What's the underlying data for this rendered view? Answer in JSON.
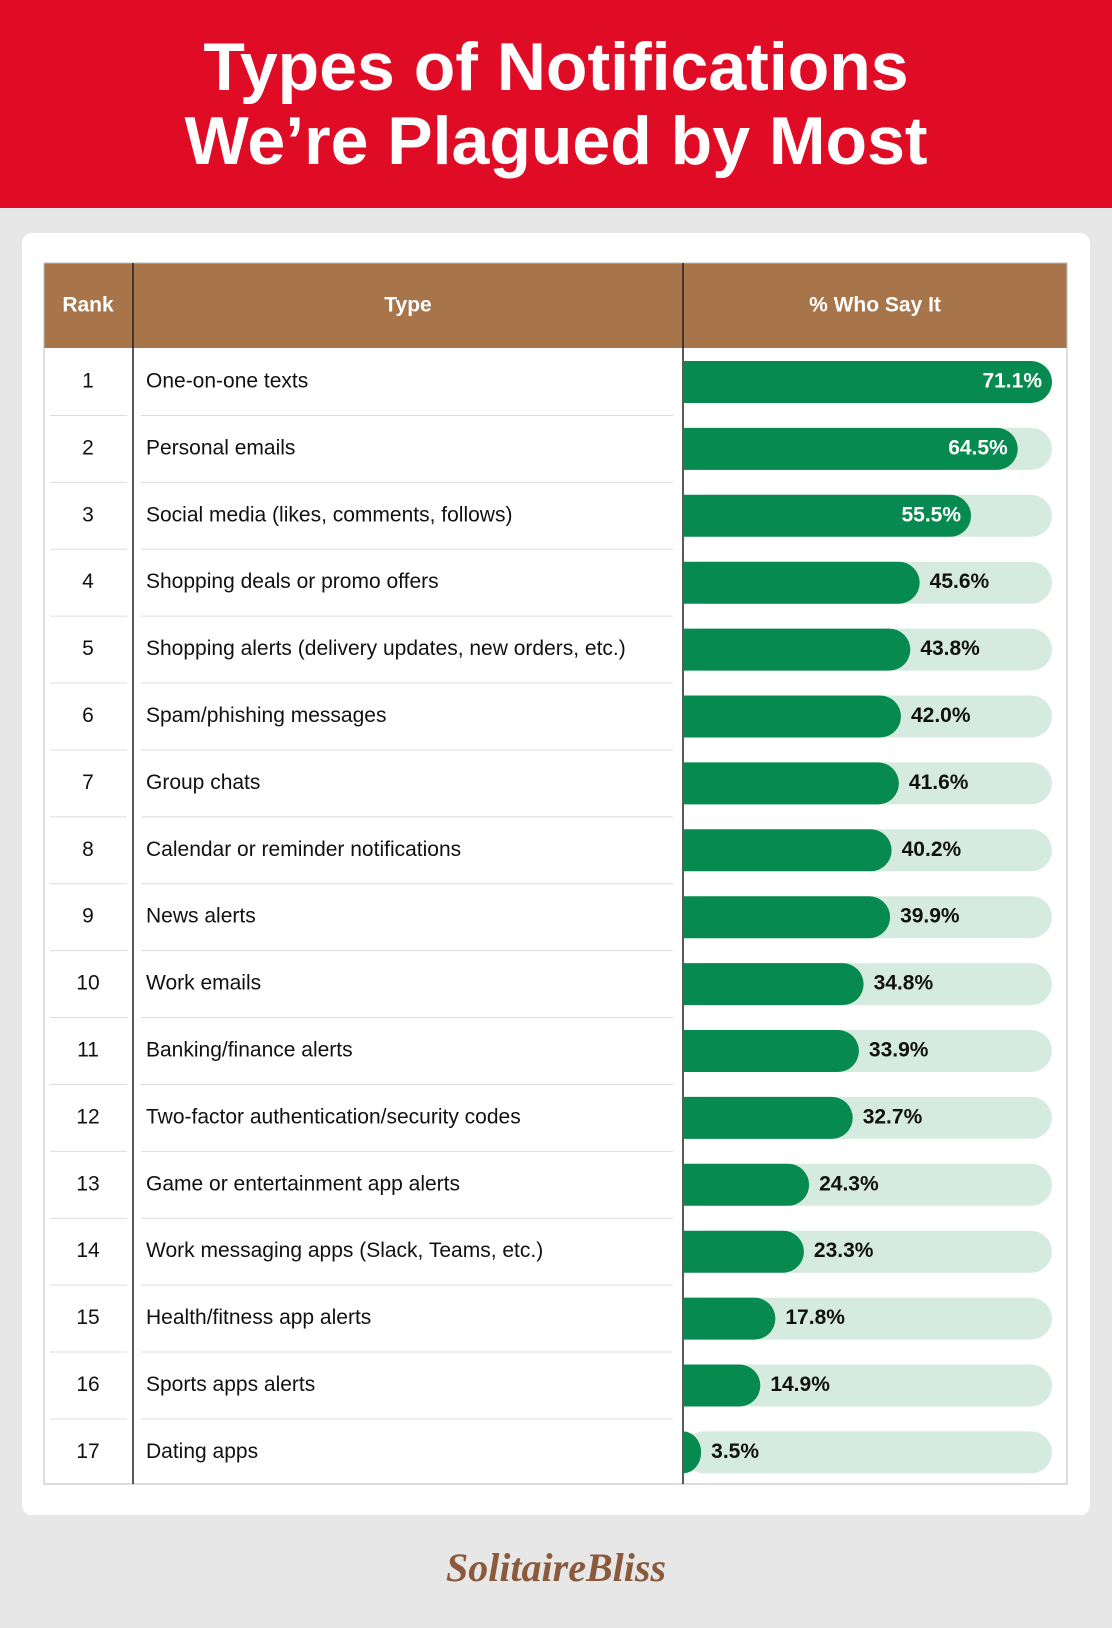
{
  "chart_data": {
    "type": "bar",
    "title": [
      "Types of Notifications",
      "We’re Plagued by Most"
    ],
    "columns": [
      "Rank",
      "Type",
      "% Who Say It"
    ],
    "ranks": [
      1,
      2,
      3,
      4,
      5,
      6,
      7,
      8,
      9,
      10,
      11,
      12,
      13,
      14,
      15,
      16,
      17
    ],
    "categories": [
      "One-on-one texts",
      "Personal emails",
      "Social media (likes, comments, follows)",
      "Shopping deals or promo offers",
      "Shopping alerts (delivery updates, new orders, etc.)",
      "Spam/phishing messages",
      "Group chats",
      "Calendar or reminder notifications",
      "News alerts",
      "Work emails",
      "Banking/finance alerts",
      "Two-factor authentication/security codes",
      "Game or entertainment app alerts",
      "Work messaging apps (Slack, Teams, etc.)",
      "Health/fitness app alerts",
      "Sports apps alerts",
      "Dating apps"
    ],
    "values": [
      71.1,
      64.5,
      55.5,
      45.6,
      43.8,
      42.0,
      41.6,
      40.2,
      39.9,
      34.8,
      33.9,
      32.7,
      24.3,
      23.3,
      17.8,
      14.9,
      3.5
    ],
    "value_labels": [
      "71.1%",
      "64.5%",
      "55.5%",
      "45.6%",
      "43.8%",
      "42.0%",
      "41.6%",
      "40.2%",
      "39.9%",
      "34.8%",
      "33.9%",
      "32.7%",
      "24.3%",
      "23.3%",
      "17.8%",
      "14.9%",
      "3.5%"
    ],
    "xlim": [
      0,
      71.1
    ],
    "color": "#078a4f",
    "track_color": "#d6ebdf",
    "brand": "SolitaireBliss"
  }
}
